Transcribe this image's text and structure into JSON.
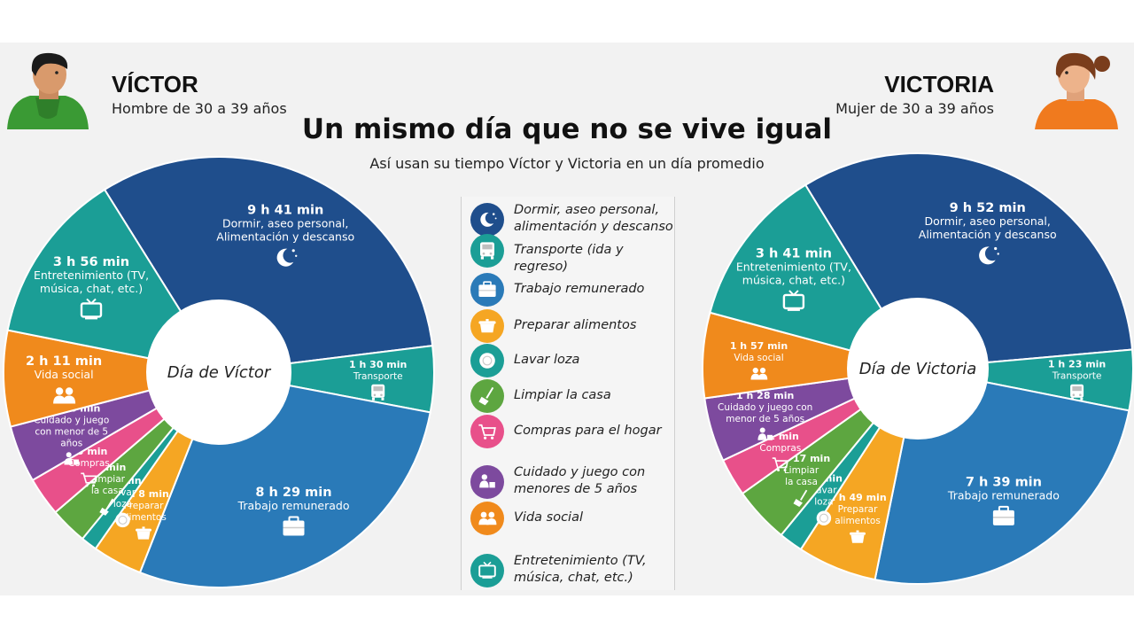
{
  "title": "Un mismo día que no se vive igual",
  "subtitle": "Así usan su tiempo Víctor y Victoria en un día promedio",
  "people": {
    "victor": {
      "name": "VÍCTOR",
      "desc": "Hombre de 30 a 39 años",
      "center_label": "Día de Víctor"
    },
    "victoria": {
      "name": "VICTORIA",
      "desc": "Mujer de 30 a 39 años",
      "center_label": "Día de Victoria"
    }
  },
  "legend": [
    {
      "label_lines": [
        "Dormir, aseo personal,",
        "alimentación y descanso"
      ],
      "icon": "moon-icon",
      "color": "#1f4e8c"
    },
    {
      "label_lines": [
        "Transporte (ida y regreso)"
      ],
      "icon": "bus-icon",
      "color": "#1b9e96"
    },
    {
      "label_lines": [
        "Trabajo remunerado"
      ],
      "icon": "briefcase-icon",
      "color": "#2a7ab8"
    },
    {
      "label_lines": [
        "Preparar alimentos"
      ],
      "icon": "pot-icon",
      "color": "#f5a623"
    },
    {
      "label_lines": [
        "Lavar loza"
      ],
      "icon": "plate-icon",
      "color": "#1b9e96"
    },
    {
      "label_lines": [
        "Limpiar la casa"
      ],
      "icon": "broom-icon",
      "color": "#5da640"
    },
    {
      "label_lines": [
        "Compras para el hogar"
      ],
      "icon": "cart-icon",
      "color": "#e8508a"
    },
    {
      "label_lines": [
        "Cuidado y juego con",
        "menores de 5 años"
      ],
      "icon": "child-care-icon",
      "color": "#7d4a9e"
    },
    {
      "label_lines": [
        "Vida social"
      ],
      "icon": "people-icon",
      "color": "#f08a1c"
    },
    {
      "label_lines": [
        "Entretenimiento (TV,",
        "música, chat, etc.)"
      ],
      "icon": "tv-icon",
      "color": "#1b9e96"
    }
  ],
  "chart_data": [
    {
      "type": "pie",
      "title": "Día de Víctor",
      "unit": "min",
      "slices": [
        {
          "category": "Dormir, aseo personal, Alimentación y descanso",
          "value": 581,
          "time_label": "9 h 41 min",
          "label_lines": [
            "Dormir, aseo personal,",
            "Alimentación y descanso"
          ],
          "color": "#1f4e8c",
          "icon": "moon-icon"
        },
        {
          "category": "Transporte",
          "value": 90,
          "time_label": "1 h 30 min",
          "label_lines": [
            "Transporte"
          ],
          "color": "#1b9e96",
          "icon": "bus-icon"
        },
        {
          "category": "Trabajo remunerado",
          "value": 509,
          "time_label": "8 h 29 min",
          "label_lines": [
            "Trabajo remunerado"
          ],
          "color": "#2a7ab8",
          "icon": "briefcase-icon"
        },
        {
          "category": "Preparar alimentos",
          "value": 68,
          "time_label": "1 h 8 min",
          "label_lines": [
            "Preparar",
            "alimentos"
          ],
          "color": "#f5a623",
          "icon": "pot-icon"
        },
        {
          "category": "Lavar loza",
          "value": 22,
          "time_label": "22 min",
          "label_lines": [
            "Lavar",
            "loza"
          ],
          "color": "#1b9e96",
          "icon": "plate-icon"
        },
        {
          "category": "Limpiar la casa",
          "value": 51,
          "time_label": "51 min",
          "label_lines": [
            "Limpiar",
            "la casa"
          ],
          "color": "#5da640",
          "icon": "broom-icon"
        },
        {
          "category": "Compras",
          "value": 53,
          "time_label": "53 min",
          "label_lines": [
            "Compras"
          ],
          "color": "#e8508a",
          "icon": "cart-icon"
        },
        {
          "category": "Cuidado y juego con menor de 5 años",
          "value": 78,
          "time_label": "1 h 18 min",
          "label_lines": [
            "Cuidado y juego",
            "con menor de 5",
            "años"
          ],
          "color": "#7d4a9e",
          "icon": "child-care-icon"
        },
        {
          "category": "Vida social",
          "value": 131,
          "time_label": "2 h 11 min",
          "label_lines": [
            "Vida social"
          ],
          "color": "#f08a1c",
          "icon": "people-icon"
        },
        {
          "category": "Entretenimiento (TV, música, chat, etc.)",
          "value": 236,
          "time_label": "3 h 56 min",
          "label_lines": [
            "Entretenimiento (TV,",
            "música, chat, etc.)"
          ],
          "color": "#1b9e96",
          "icon": "tv-icon"
        }
      ]
    },
    {
      "type": "pie",
      "title": "Día de Victoria",
      "unit": "min",
      "slices": [
        {
          "category": "Dormir, aseo personal, Alimentación y descanso",
          "value": 592,
          "time_label": "9 h 52 min",
          "label_lines": [
            "Dormir, aseo personal,",
            "Alimentación y descanso"
          ],
          "color": "#1f4e8c",
          "icon": "moon-icon"
        },
        {
          "category": "Transporte",
          "value": 83,
          "time_label": "1 h 23 min",
          "label_lines": [
            "Transporte"
          ],
          "color": "#1b9e96",
          "icon": "bus-icon"
        },
        {
          "category": "Trabajo remunerado",
          "value": 459,
          "time_label": "7 h 39 min",
          "label_lines": [
            "Trabajo remunerado"
          ],
          "color": "#2a7ab8",
          "icon": "briefcase-icon"
        },
        {
          "category": "Preparar alimentos",
          "value": 109,
          "time_label": "1 h 49 min",
          "label_lines": [
            "Preparar",
            "alimentos"
          ],
          "color": "#f5a623",
          "icon": "pot-icon"
        },
        {
          "category": "Lavar loza",
          "value": 33,
          "time_label": "33 min",
          "label_lines": [
            "Lavar",
            "loza"
          ],
          "color": "#1b9e96",
          "icon": "plate-icon"
        },
        {
          "category": "Limpiar la casa",
          "value": 77,
          "time_label": "1 h 17 min",
          "label_lines": [
            "Limpiar",
            "la casa"
          ],
          "color": "#5da640",
          "icon": "broom-icon"
        },
        {
          "category": "Compras",
          "value": 52,
          "time_label": "52 min",
          "label_lines": [
            "Compras"
          ],
          "color": "#e8508a",
          "icon": "cart-icon"
        },
        {
          "category": "Cuidado y juego con menor de 5 años",
          "value": 88,
          "time_label": "1 h 28 min",
          "label_lines": [
            "Cuidado y juego con",
            "menor de 5 años"
          ],
          "color": "#7d4a9e",
          "icon": "child-care-icon"
        },
        {
          "category": "Vida social",
          "value": 117,
          "time_label": "1 h 57 min",
          "label_lines": [
            "Vida social"
          ],
          "color": "#f08a1c",
          "icon": "people-icon"
        },
        {
          "category": "Entretenimiento (TV, música, chat, etc.)",
          "value": 221,
          "time_label": "3 h 41 min",
          "label_lines": [
            "Entretenimiento (TV,",
            "música, chat, etc.)"
          ],
          "color": "#1b9e96",
          "icon": "tv-icon"
        }
      ]
    }
  ]
}
